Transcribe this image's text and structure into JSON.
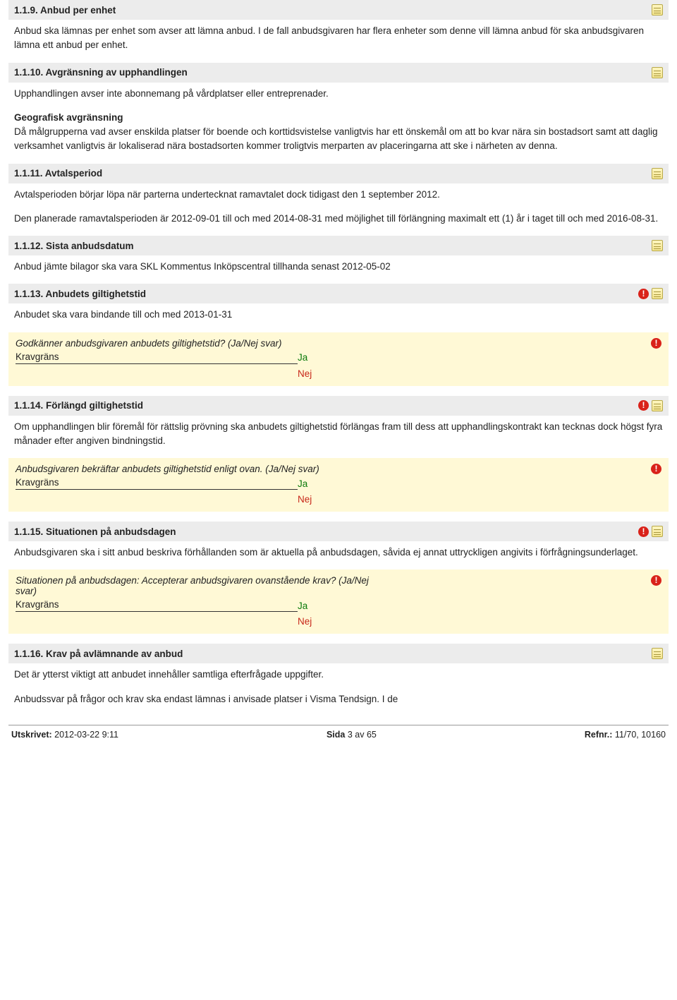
{
  "sections": [
    {
      "number": "1.1.9.",
      "title": "Anbud per enhet",
      "alert": false,
      "paragraphs": [
        "Anbud ska lämnas per enhet som avser att lämna anbud. I de fall anbudsgivaren har flera enheter som denne vill lämna anbud för ska anbudsgivaren lämna ett anbud per enhet."
      ]
    },
    {
      "number": "1.1.10.",
      "title": "Avgränsning av upphandlingen",
      "alert": false,
      "paragraphs": [
        "Upphandlingen avser inte abonnemang på vårdplatser eller entreprenader."
      ],
      "subhead": "Geografisk avgränsning",
      "subparagraphs": [
        "Då målgrupperna vad avser enskilda platser för boende och korttidsvistelse vanligtvis har ett önskemål om att bo kvar nära sin bostadsort samt att daglig verksamhet vanligtvis är lokaliserad nära bostadsorten kommer troligtvis merparten av placeringarna att ske i närheten av denna."
      ]
    },
    {
      "number": "1.1.11.",
      "title": "Avtalsperiod",
      "alert": false,
      "paragraphs": [
        "Avtalsperioden börjar löpa när parterna undertecknat ramavtalet dock tidigast den 1 september 2012.",
        "Den planerade ramavtalsperioden är 2012-09-01 till och med 2014-08-31 med möjlighet  till förlängning maximalt ett (1) år i taget till och med 2016-08-31."
      ]
    },
    {
      "number": "1.1.12.",
      "title": "Sista anbudsdatum",
      "alert": false,
      "paragraphs": [
        "Anbud jämte bilagor ska vara SKL Kommentus Inköpscentral tillhanda senast 2012-05-02"
      ]
    },
    {
      "number": "1.1.13.",
      "title": "Anbudets giltighetstid",
      "alert": true,
      "paragraphs": [
        "Anbudet ska vara bindande till och med 2013-01-31"
      ],
      "question": {
        "text": "Godkänner anbudsgivaren anbudets giltighetstid? (Ja/Nej svar)",
        "kravgrans": "Kravgräns",
        "ja": "Ja",
        "nej": "Nej"
      }
    },
    {
      "number": "1.1.14.",
      "title": "Förlängd giltighetstid",
      "alert": true,
      "paragraphs": [
        "Om upphandlingen blir föremål för rättslig prövning ska anbudets giltighetstid förlängas fram till dess att upphandlingskontrakt kan tecknas dock högst fyra månader efter angiven bindningstid."
      ],
      "question": {
        "text": "Anbudsgivaren bekräftar anbudets giltighetstid enligt ovan. (Ja/Nej svar)",
        "kravgrans": "Kravgräns",
        "ja": "Ja",
        "nej": "Nej"
      }
    },
    {
      "number": "1.1.15.",
      "title": "Situationen på anbudsdagen",
      "alert": true,
      "paragraphs": [
        "Anbudsgivaren ska i sitt anbud beskriva förhållanden som är aktuella på anbudsdagen, såvida ej annat uttryckligen angivits i förfrågningsunderlaget."
      ],
      "question": {
        "text": "Situationen på anbudsdagen: Accepterar anbudsgivaren ovanstående krav? (Ja/Nej svar)",
        "kravgrans": "Kravgräns",
        "ja": "Ja",
        "nej": "Nej"
      }
    },
    {
      "number": "1.1.16.",
      "title": "Krav på avlämnande av anbud",
      "alert": false,
      "paragraphs": [
        "Det är ytterst viktigt att anbudet innehåller samtliga efterfrågade uppgifter.",
        "Anbudssvar på frågor och krav ska endast lämnas i anvisade platser i Visma Tendsign. I de"
      ]
    }
  ],
  "footer": {
    "printed_label": "Utskrivet:",
    "printed_value": "2012-03-22  9:11",
    "page_label": "Sida",
    "page_current": "3",
    "page_sep": "av",
    "page_total": "65",
    "ref_label": "Refnr.:",
    "ref_value": "11/70, 10160"
  }
}
